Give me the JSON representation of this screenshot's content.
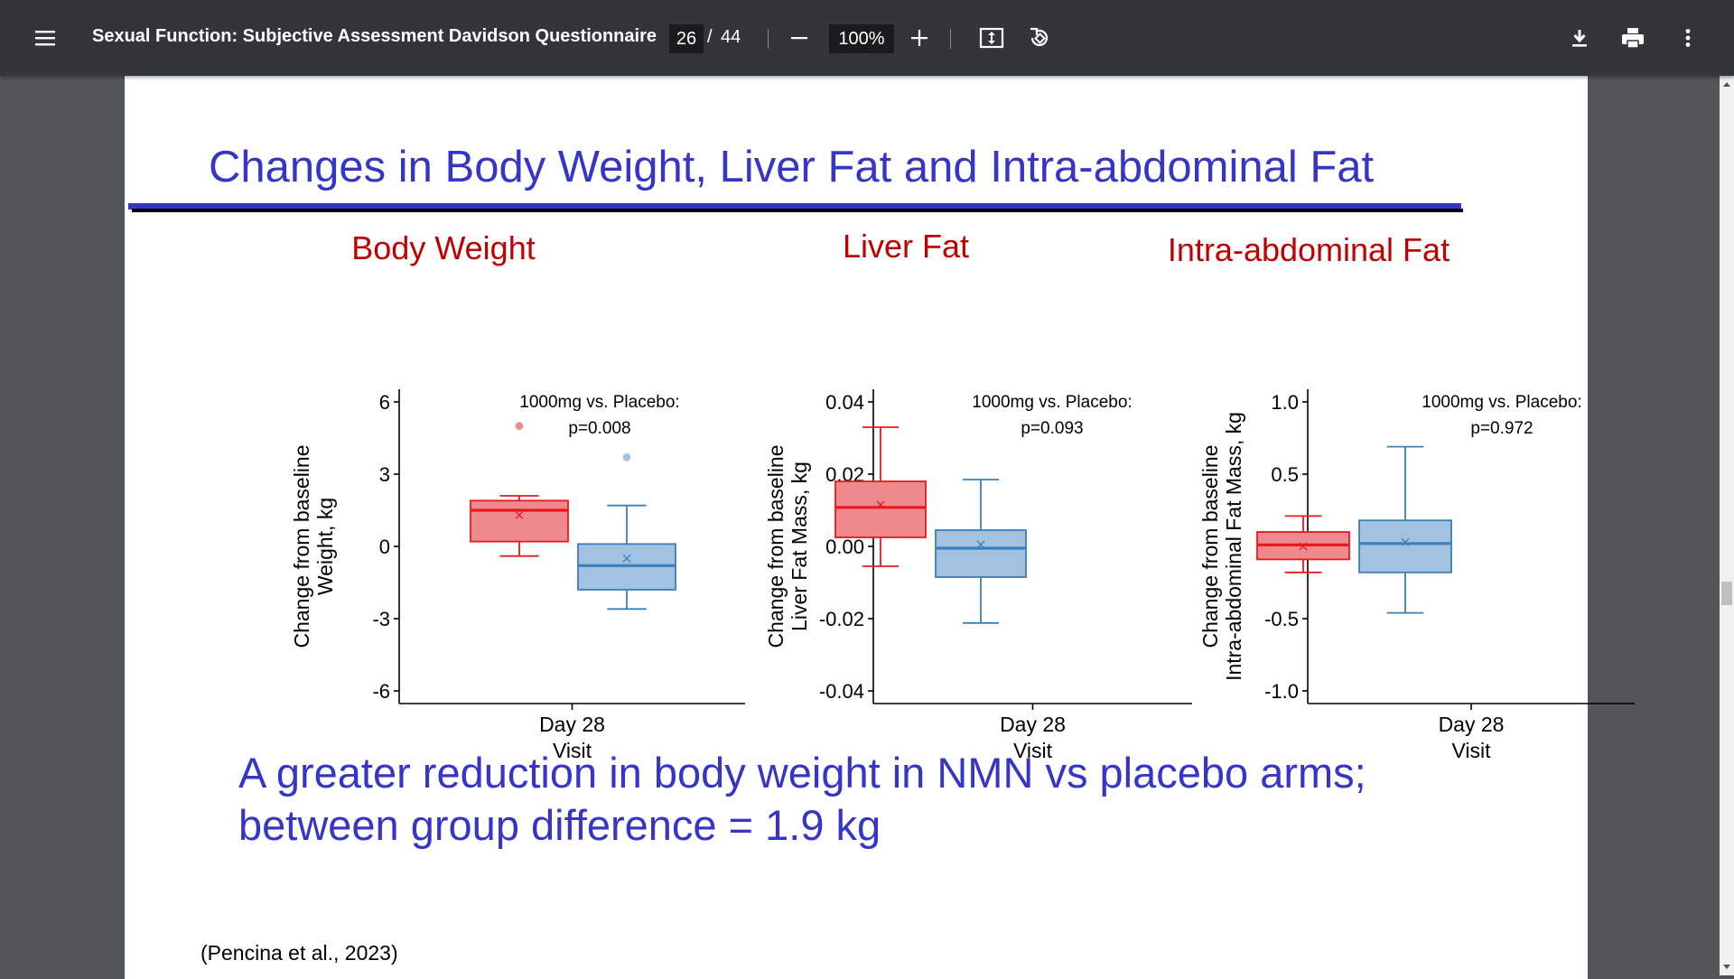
{
  "toolbar": {
    "title": "Sexual Function: Subjective Assessment Davidson Questionnaire",
    "page_current": "26",
    "page_sep": "/",
    "page_total": "44",
    "zoom": "100%"
  },
  "slide": {
    "title": "Changes in Body Weight, Liver Fat and Intra-abdominal Fat",
    "conclusion_line1": "A greater reduction in body weight in NMN vs placebo arms;",
    "conclusion_line2": "between group difference = 1.9 kg",
    "citation": "(Pencina et al., 2023)"
  },
  "colors": {
    "accent_blue": "#3535c8",
    "title_red": "#c00000",
    "nmn_red": "#e8191f",
    "placebo_blue": "#3a7fb8"
  },
  "chart_data": [
    {
      "type": "box",
      "title": "Body Weight",
      "ylabel_lines": [
        "Change from baseline",
        "Weight, kg"
      ],
      "xlabel": "Visit",
      "x_category": "Day 28",
      "ylim": [
        -6,
        6
      ],
      "yticks": [
        6,
        3,
        0,
        -3,
        -6
      ],
      "annotation": [
        "1000mg vs. Placebo:",
        "p=0.008"
      ],
      "boxes": [
        {
          "color": "red",
          "whisker_low": -0.4,
          "q1": 0.2,
          "median": 1.5,
          "mean": 1.3,
          "q3": 1.9,
          "whisker_high": 2.1,
          "outliers": [
            5.0
          ]
        },
        {
          "color": "blue",
          "whisker_low": -2.6,
          "q1": -1.8,
          "median": -0.8,
          "mean": -0.5,
          "q3": 0.1,
          "whisker_high": 1.7,
          "outliers": [
            3.7
          ]
        }
      ]
    },
    {
      "type": "box",
      "title": "Liver Fat",
      "ylabel_lines": [
        "Change from baseline",
        "Liver Fat Mass, kg"
      ],
      "xlabel": "Visit",
      "x_category": "Day 28",
      "ylim": [
        -0.04,
        0.04
      ],
      "yticks": [
        0.04,
        0.02,
        0.0,
        -0.02,
        -0.04
      ],
      "ytick_labels": [
        "0.04",
        "0.02",
        "0.00",
        "-0.02",
        "-0.04"
      ],
      "annotation": [
        "1000mg vs. Placebo:",
        "p=0.093"
      ],
      "boxes": [
        {
          "color": "red",
          "whisker_low": -0.0055,
          "q1": 0.0025,
          "median": 0.0108,
          "mean": 0.0115,
          "q3": 0.018,
          "whisker_high": 0.033,
          "outliers": []
        },
        {
          "color": "blue",
          "whisker_low": -0.0212,
          "q1": -0.0085,
          "median": -0.0005,
          "mean": 0.0005,
          "q3": 0.0045,
          "whisker_high": 0.0185,
          "outliers": []
        }
      ]
    },
    {
      "type": "box",
      "title": "Intra-abdominal Fat",
      "ylabel_lines": [
        "Change from baseline",
        "Intra-abdominal Fat Mass, kg"
      ],
      "xlabel": "Visit",
      "x_category": "Day 28",
      "ylim": [
        -1.0,
        1.0
      ],
      "yticks": [
        1.0,
        0.5,
        0.0,
        -0.5,
        -1.0
      ],
      "ytick_labels": [
        "1.0",
        "0.5",
        "0.0",
        "-0.5",
        "-1.0"
      ],
      "annotation": [
        "1000mg vs. Placebo:",
        "p=0.972"
      ],
      "boxes": [
        {
          "color": "red",
          "whisker_low": -0.18,
          "q1": -0.09,
          "median": 0.01,
          "mean": 0.0,
          "q3": 0.1,
          "whisker_high": 0.21,
          "outliers": []
        },
        {
          "color": "blue",
          "whisker_low": -0.46,
          "q1": -0.18,
          "median": 0.02,
          "mean": 0.03,
          "q3": 0.18,
          "whisker_high": 0.69,
          "outliers": []
        }
      ]
    }
  ]
}
